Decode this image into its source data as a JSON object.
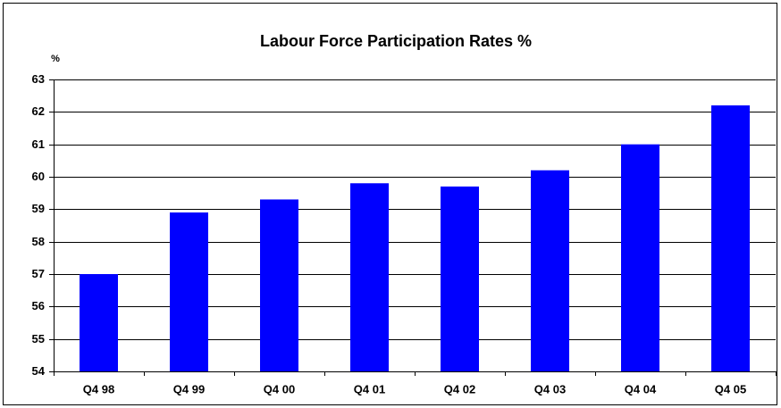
{
  "chart_data": {
    "type": "bar",
    "title": "Labour Force Participation Rates %",
    "y_label": "%",
    "categories": [
      "Q4 98",
      "Q4 99",
      "Q4 00",
      "Q4 01",
      "Q4 02",
      "Q4 03",
      "Q4 04",
      "Q4 05"
    ],
    "values": [
      57,
      58.9,
      59.3,
      59.8,
      59.7,
      60.2,
      61,
      62.2
    ],
    "color": "#0000ff",
    "ylim": [
      54,
      63
    ],
    "yticks": [
      54,
      55,
      56,
      57,
      58,
      59,
      60,
      61,
      62,
      63
    ],
    "grid": true
  }
}
